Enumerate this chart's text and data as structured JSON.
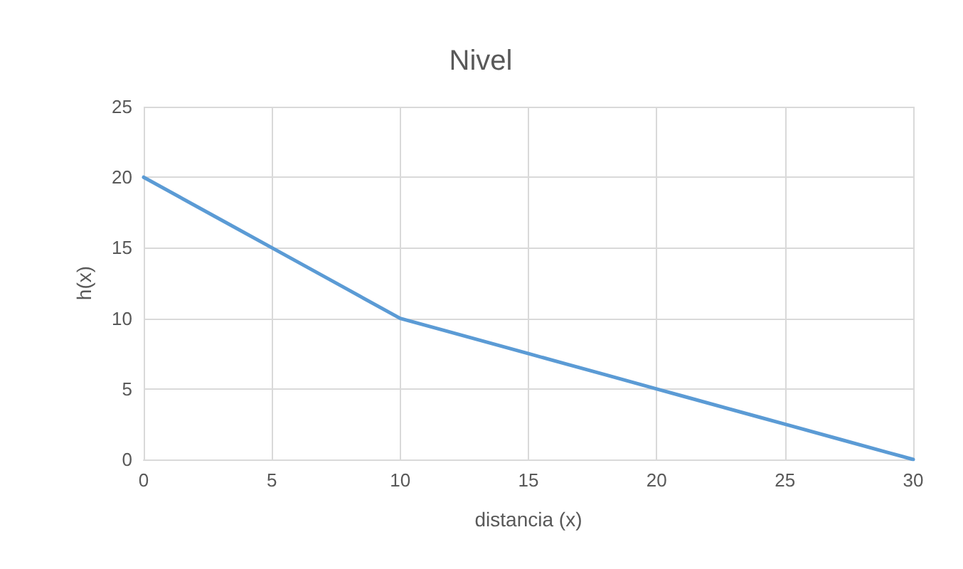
{
  "chart_data": {
    "type": "line",
    "title": "Nivel",
    "xlabel": "distancia (x)",
    "ylabel": "h(x)",
    "x": [
      0,
      3,
      5,
      8,
      10,
      12,
      15,
      18,
      20,
      21,
      24,
      25,
      27,
      29,
      30
    ],
    "series": [
      {
        "color": "#5b9bd5",
        "values": [
          20,
          17,
          15,
          12,
          10,
          9,
          7.5,
          6,
          5,
          4.5,
          3,
          2.5,
          1.5,
          0.5,
          0
        ]
      }
    ],
    "xlim": [
      0,
      30
    ],
    "xticks": [
      0,
      5,
      10,
      15,
      20,
      25,
      30
    ],
    "ylim": [
      0,
      25
    ],
    "yticks": [
      0,
      5,
      10,
      15,
      20,
      25
    ],
    "grid": true,
    "marker": "none",
    "line_style": "solid"
  }
}
